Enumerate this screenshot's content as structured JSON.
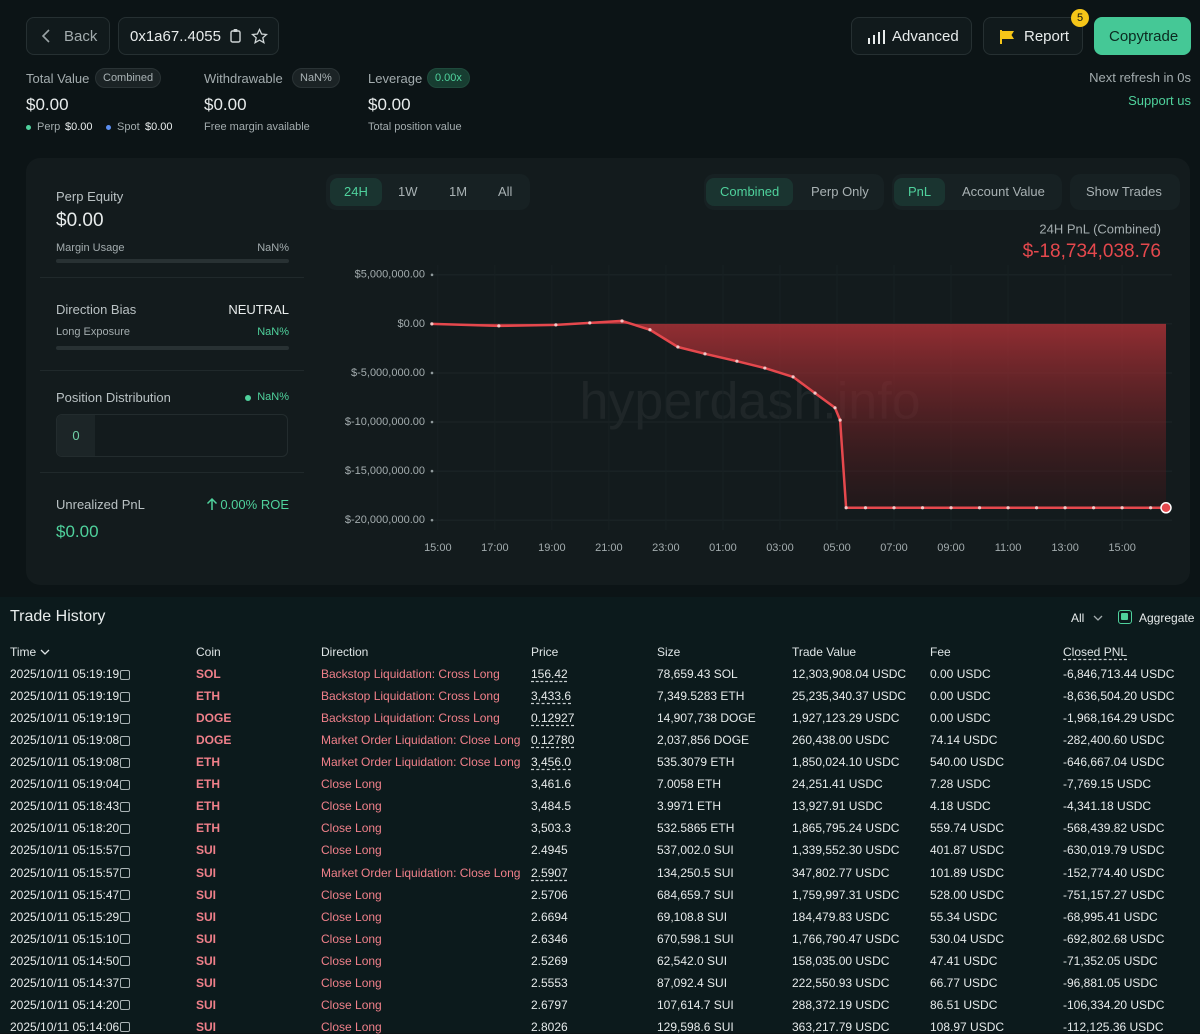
{
  "header": {
    "back": "Back",
    "address": "0x1a67..4055",
    "advanced": "Advanced",
    "report": "Report",
    "report_badge": "5",
    "copytrade": "Copytrade",
    "refresh": "Next refresh in 0s",
    "support": "Support us"
  },
  "summary": {
    "total_value": {
      "label": "Total Value",
      "tag": "Combined",
      "value": "$0.00",
      "perp_label": "Perp",
      "perp_value": "$0.00",
      "spot_label": "Spot",
      "spot_value": "$0.00"
    },
    "withdrawable": {
      "label": "Withdrawable",
      "tag": "NaN%",
      "value": "$0.00",
      "note": "Free margin available"
    },
    "leverage": {
      "label": "Leverage",
      "tag": "0.00x",
      "value": "$0.00",
      "note": "Total position value"
    }
  },
  "side_panel": {
    "perp_equity": {
      "label": "Perp Equity",
      "value": "$0.00",
      "usage_label": "Margin Usage",
      "usage_value": "NaN%"
    },
    "direction_bias": {
      "label": "Direction Bias",
      "value": "NEUTRAL",
      "exposure_label": "Long Exposure",
      "exposure_value": "NaN%"
    },
    "position_distribution": {
      "label": "Position Distribution",
      "value": "NaN%",
      "count": "0"
    },
    "unrealized_pnl": {
      "label": "Unrealized PnL",
      "roe": "0.00% ROE",
      "value": "$0.00"
    }
  },
  "chart_controls": {
    "ranges": [
      "24H",
      "1W",
      "1M",
      "All"
    ],
    "scopes": [
      "Combined",
      "Perp Only"
    ],
    "metrics": [
      "PnL",
      "Account Value"
    ],
    "show_trades": "Show Trades"
  },
  "chart_data": {
    "type": "area",
    "title": "24H PnL (Combined)",
    "headline": "$-18,734,038.76",
    "watermark": "hyperdash.info",
    "color": "#e5484d",
    "x": [
      14.79,
      17.14,
      19.14,
      20.33,
      21.46,
      22.44,
      23.42,
      24.37,
      25.49,
      26.47,
      27.46,
      28.23,
      28.93,
      29.11,
      29.32,
      30,
      31,
      32,
      33,
      34,
      35,
      36,
      37,
      38,
      39,
      40,
      40.54
    ],
    "values": [
      0,
      -200000,
      -100000,
      100000,
      300000,
      -600000,
      -2350000,
      -3050000,
      -3800000,
      -4500000,
      -5400000,
      -7050000,
      -8550000,
      -9800000,
      -18734038.76,
      -18734038.76,
      -18734038.76,
      -18734038.76,
      -18734038.76,
      -18734038.76,
      -18734038.76,
      -18734038.76,
      -18734038.76,
      -18734038.76,
      -18734038.76,
      -18734038.76,
      -18734038.76
    ],
    "xlim": [
      14.55,
      40.75
    ],
    "xticks": [
      {
        "value": 15,
        "label": "15:00"
      },
      {
        "value": 17,
        "label": "17:00"
      },
      {
        "value": 19,
        "label": "19:00"
      },
      {
        "value": 21,
        "label": "21:00"
      },
      {
        "value": 23,
        "label": "23:00"
      },
      {
        "value": 25,
        "label": "01:00"
      },
      {
        "value": 27,
        "label": "03:00"
      },
      {
        "value": 29,
        "label": "05:00"
      },
      {
        "value": 31,
        "label": "07:00"
      },
      {
        "value": 33,
        "label": "09:00"
      },
      {
        "value": 35,
        "label": "11:00"
      },
      {
        "value": 37,
        "label": "13:00"
      },
      {
        "value": 39,
        "label": "15:00"
      }
    ],
    "ylim": [
      -21000000,
      6000000
    ],
    "yticks": [
      {
        "value": 5000000,
        "label": "$5,000,000.00"
      },
      {
        "value": 0,
        "label": "$0.00"
      },
      {
        "value": -5000000,
        "label": "$-5,000,000.00"
      },
      {
        "value": -10000000,
        "label": "$-10,000,000.00"
      },
      {
        "value": -15000000,
        "label": "$-15,000,000.00"
      },
      {
        "value": -20000000,
        "label": "$-20,000,000.00"
      }
    ],
    "grid": true
  },
  "trade_history": {
    "title": "Trade History",
    "filter": "All",
    "aggregate": "Aggregate",
    "columns": [
      "Time",
      "Coin",
      "Direction",
      "Price",
      "Size",
      "Trade Value",
      "Fee",
      "Closed PNL"
    ],
    "rows": [
      [
        "2025/10/11 05:19:19",
        "SOL",
        "Backstop Liquidation: Cross Long",
        "156.42",
        "78,659.43 SOL",
        "12,303,908.04 USDC",
        "0.00 USDC",
        "-6,846,713.44 USDC"
      ],
      [
        "2025/10/11 05:19:19",
        "ETH",
        "Backstop Liquidation: Cross Long",
        "3,433.6",
        "7,349.5283 ETH",
        "25,235,340.37 USDC",
        "0.00 USDC",
        "-8,636,504.20 USDC"
      ],
      [
        "2025/10/11 05:19:19",
        "DOGE",
        "Backstop Liquidation: Cross Long",
        "0.12927",
        "14,907,738 DOGE",
        "1,927,123.29 USDC",
        "0.00 USDC",
        "-1,968,164.29 USDC"
      ],
      [
        "2025/10/11 05:19:08",
        "DOGE",
        "Market Order Liquidation: Close Long",
        "0.12780",
        "2,037,856 DOGE",
        "260,438.00 USDC",
        "74.14 USDC",
        "-282,400.60 USDC"
      ],
      [
        "2025/10/11 05:19:08",
        "ETH",
        "Market Order Liquidation: Close Long",
        "3,456.0",
        "535.3079 ETH",
        "1,850,024.10 USDC",
        "540.00 USDC",
        "-646,667.04 USDC"
      ],
      [
        "2025/10/11 05:19:04",
        "ETH",
        "Close Long",
        "3,461.6",
        "7.0058 ETH",
        "24,251.41 USDC",
        "7.28 USDC",
        "-7,769.15 USDC"
      ],
      [
        "2025/10/11 05:18:43",
        "ETH",
        "Close Long",
        "3,484.5",
        "3.9971 ETH",
        "13,927.91 USDC",
        "4.18 USDC",
        "-4,341.18 USDC"
      ],
      [
        "2025/10/11 05:18:20",
        "ETH",
        "Close Long",
        "3,503.3",
        "532.5865 ETH",
        "1,865,795.24 USDC",
        "559.74 USDC",
        "-568,439.82 USDC"
      ],
      [
        "2025/10/11 05:15:57",
        "SUI",
        "Close Long",
        "2.4945",
        "537,002.0 SUI",
        "1,339,552.30 USDC",
        "401.87 USDC",
        "-630,019.79 USDC"
      ],
      [
        "2025/10/11 05:15:57",
        "SUI",
        "Market Order Liquidation: Close Long",
        "2.5907",
        "134,250.5 SUI",
        "347,802.77 USDC",
        "101.89 USDC",
        "-152,774.40 USDC"
      ],
      [
        "2025/10/11 05:15:47",
        "SUI",
        "Close Long",
        "2.5706",
        "684,659.7 SUI",
        "1,759,997.31 USDC",
        "528.00 USDC",
        "-751,157.27 USDC"
      ],
      [
        "2025/10/11 05:15:29",
        "SUI",
        "Close Long",
        "2.6694",
        "69,108.8 SUI",
        "184,479.83 USDC",
        "55.34 USDC",
        "-68,995.41 USDC"
      ],
      [
        "2025/10/11 05:15:10",
        "SUI",
        "Close Long",
        "2.6346",
        "670,598.1 SUI",
        "1,766,790.47 USDC",
        "530.04 USDC",
        "-692,802.68 USDC"
      ],
      [
        "2025/10/11 05:14:50",
        "SUI",
        "Close Long",
        "2.5269",
        "62,542.0 SUI",
        "158,035.00 USDC",
        "47.41 USDC",
        "-71,352.05 USDC"
      ],
      [
        "2025/10/11 05:14:37",
        "SUI",
        "Close Long",
        "2.5553",
        "87,092.4 SUI",
        "222,550.93 USDC",
        "66.77 USDC",
        "-96,881.05 USDC"
      ],
      [
        "2025/10/11 05:14:20",
        "SUI",
        "Close Long",
        "2.6797",
        "107,614.7 SUI",
        "288,372.19 USDC",
        "86.51 USDC",
        "-106,334.20 USDC"
      ],
      [
        "2025/10/11 05:14:06",
        "SUI",
        "Close Long",
        "2.8026",
        "129,598.6 SUI",
        "363,217.79 USDC",
        "108.97 USDC",
        "-112,125.36 USDC"
      ]
    ]
  }
}
